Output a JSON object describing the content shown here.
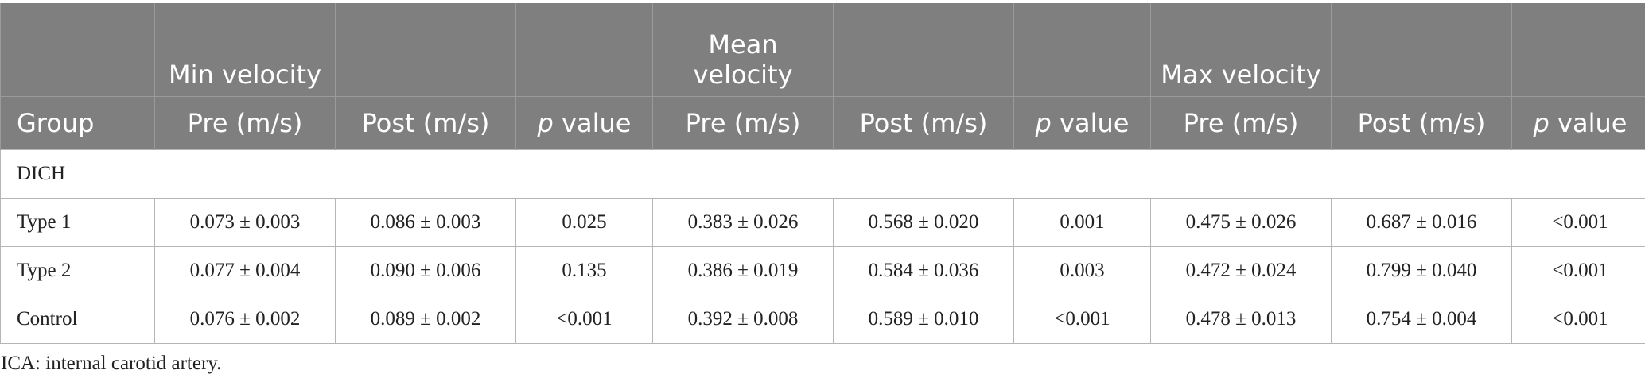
{
  "header": {
    "groups": [
      "",
      "Min velocity",
      "",
      "",
      "Mean velocity",
      "",
      "",
      "Max velocity",
      "",
      ""
    ],
    "columns": [
      "Group",
      "Pre (m/s)",
      "Post (m/s)",
      "value",
      "Pre (m/s)",
      "Post (m/s)",
      "value",
      "Pre (m/s)",
      "Post (m/s)",
      "value"
    ],
    "p_prefix": "p"
  },
  "section": "DICH",
  "rows": [
    [
      "Type 1",
      "0.073 ± 0.003",
      "0.086 ± 0.003",
      "0.025",
      "0.383 ± 0.026",
      "0.568 ± 0.020",
      "0.001",
      "0.475 ± 0.026",
      "0.687 ± 0.016",
      "<0.001"
    ],
    [
      "Type 2",
      "0.077 ± 0.004",
      "0.090 ± 0.006",
      "0.135",
      "0.386 ± 0.019",
      "0.584 ± 0.036",
      "0.003",
      "0.472 ± 0.024",
      "0.799 ± 0.040",
      "<0.001"
    ],
    [
      "Control",
      "0.076 ± 0.002",
      "0.089 ± 0.002",
      "<0.001",
      "0.392 ± 0.008",
      "0.589 ± 0.010",
      "<0.001",
      "0.478 ± 0.013",
      "0.754 ± 0.004",
      "<0.001"
    ]
  ],
  "footnote": "ICA: internal carotid artery.",
  "colors": {
    "header_bg": "#7f7f7f",
    "header_text": "#ffffff",
    "border": "#b5b5b5"
  }
}
